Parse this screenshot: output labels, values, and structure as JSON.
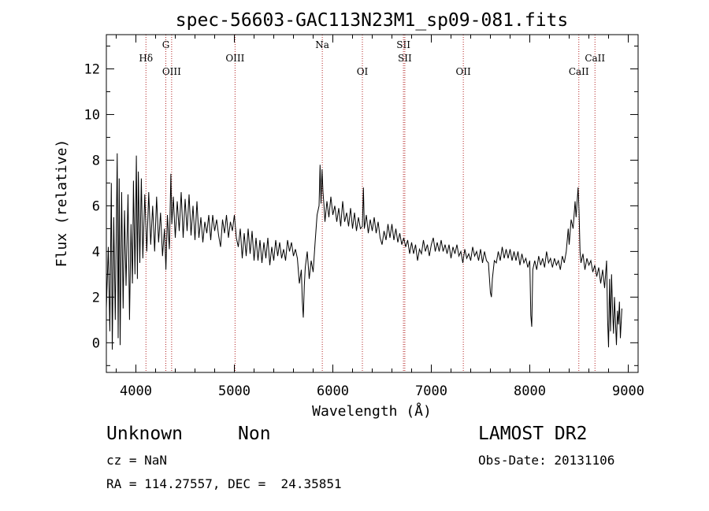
{
  "chart_data": {
    "type": "line",
    "title": "spec-56603-GAC113N23M1_sp09-081.fits",
    "xlabel": "Wavelength (Å)",
    "ylabel": "Flux (relative)",
    "xlim": [
      3700,
      9100
    ],
    "ylim": [
      -1.3,
      13.5
    ],
    "xticks": [
      "4000",
      "5000",
      "6000",
      "7000",
      "8000",
      "9000"
    ],
    "yticks": [
      "0",
      "2",
      "4",
      "6",
      "8",
      "10",
      "12"
    ],
    "line_color": "#000000",
    "marker_color": "#b22222",
    "lines": [
      {
        "name": "Hδ",
        "x": 4102,
        "row": 1
      },
      {
        "name": "G",
        "x": 4304,
        "row": 0
      },
      {
        "name": "OIII",
        "x": 4363,
        "row": 2
      },
      {
        "name": "OIII",
        "x": 5007,
        "row": 1
      },
      {
        "name": "Na",
        "x": 5893,
        "row": 0
      },
      {
        "name": "OI",
        "x": 6300,
        "row": 2
      },
      {
        "name": "SII",
        "x": 6717,
        "row": 0
      },
      {
        "name": "SII",
        "x": 6731,
        "row": 1
      },
      {
        "name": "OII",
        "x": 7325,
        "row": 2
      },
      {
        "name": "CaII",
        "x": 8498,
        "row": 2
      },
      {
        "name": "CaII",
        "x": 8662,
        "row": 1
      }
    ],
    "spectrum": [
      [
        3700,
        1.5
      ],
      [
        3720,
        4.2
      ],
      [
        3735,
        0.5
      ],
      [
        3750,
        7.0
      ],
      [
        3760,
        -0.3
      ],
      [
        3775,
        5.5
      ],
      [
        3790,
        1.0
      ],
      [
        3800,
        4.5
      ],
      [
        3810,
        8.3
      ],
      [
        3820,
        0.2
      ],
      [
        3830,
        7.2
      ],
      [
        3840,
        -0.1
      ],
      [
        3855,
        6.6
      ],
      [
        3870,
        1.5
      ],
      [
        3885,
        5.8
      ],
      [
        3900,
        2.5
      ],
      [
        3920,
        6.5
      ],
      [
        3935,
        1.0
      ],
      [
        3950,
        5.2
      ],
      [
        3965,
        2.6
      ],
      [
        3975,
        7.1
      ],
      [
        3990,
        3.0
      ],
      [
        4005,
        8.2
      ],
      [
        4015,
        2.8
      ],
      [
        4025,
        7.5
      ],
      [
        4040,
        3.5
      ],
      [
        4055,
        7.2
      ],
      [
        4070,
        3.7
      ],
      [
        4090,
        6.5
      ],
      [
        4110,
        4.0
      ],
      [
        4130,
        6.6
      ],
      [
        4150,
        4.3
      ],
      [
        4170,
        6.0
      ],
      [
        4190,
        4.0
      ],
      [
        4210,
        6.4
      ],
      [
        4230,
        4.4
      ],
      [
        4250,
        5.7
      ],
      [
        4270,
        3.8
      ],
      [
        4290,
        5.0
      ],
      [
        4305,
        3.2
      ],
      [
        4320,
        5.6
      ],
      [
        4340,
        4.1
      ],
      [
        4355,
        7.4
      ],
      [
        4365,
        5.2
      ],
      [
        4380,
        6.4
      ],
      [
        4400,
        4.6
      ],
      [
        4420,
        6.2
      ],
      [
        4440,
        4.9
      ],
      [
        4460,
        6.6
      ],
      [
        4480,
        4.6
      ],
      [
        4500,
        6.3
      ],
      [
        4520,
        4.9
      ],
      [
        4540,
        6.5
      ],
      [
        4560,
        4.7
      ],
      [
        4580,
        6.0
      ],
      [
        4600,
        4.5
      ],
      [
        4620,
        6.2
      ],
      [
        4640,
        4.6
      ],
      [
        4660,
        5.5
      ],
      [
        4680,
        4.4
      ],
      [
        4700,
        5.3
      ],
      [
        4720,
        4.8
      ],
      [
        4740,
        5.6
      ],
      [
        4760,
        4.5
      ],
      [
        4780,
        5.6
      ],
      [
        4800,
        4.9
      ],
      [
        4820,
        5.4
      ],
      [
        4840,
        4.7
      ],
      [
        4860,
        4.2
      ],
      [
        4880,
        5.4
      ],
      [
        4900,
        4.8
      ],
      [
        4920,
        5.6
      ],
      [
        4940,
        4.6
      ],
      [
        4960,
        5.3
      ],
      [
        4980,
        4.9
      ],
      [
        5000,
        5.6
      ],
      [
        5020,
        4.6
      ],
      [
        5040,
        4.2
      ],
      [
        5060,
        5.0
      ],
      [
        5080,
        3.7
      ],
      [
        5100,
        4.8
      ],
      [
        5120,
        3.8
      ],
      [
        5140,
        5.0
      ],
      [
        5160,
        3.9
      ],
      [
        5180,
        4.9
      ],
      [
        5200,
        3.6
      ],
      [
        5220,
        4.6
      ],
      [
        5240,
        3.6
      ],
      [
        5260,
        4.5
      ],
      [
        5280,
        3.5
      ],
      [
        5300,
        4.4
      ],
      [
        5320,
        3.7
      ],
      [
        5340,
        4.6
      ],
      [
        5360,
        3.4
      ],
      [
        5380,
        4.2
      ],
      [
        5400,
        3.6
      ],
      [
        5420,
        4.5
      ],
      [
        5440,
        3.8
      ],
      [
        5460,
        4.4
      ],
      [
        5480,
        3.7
      ],
      [
        5500,
        4.1
      ],
      [
        5520,
        3.6
      ],
      [
        5540,
        4.5
      ],
      [
        5560,
        4.0
      ],
      [
        5580,
        4.4
      ],
      [
        5600,
        3.8
      ],
      [
        5620,
        4.1
      ],
      [
        5640,
        3.7
      ],
      [
        5660,
        2.6
      ],
      [
        5680,
        3.2
      ],
      [
        5690,
        1.8
      ],
      [
        5700,
        1.1
      ],
      [
        5710,
        2.5
      ],
      [
        5720,
        3.3
      ],
      [
        5740,
        4.0
      ],
      [
        5760,
        2.8
      ],
      [
        5780,
        3.6
      ],
      [
        5800,
        3.1
      ],
      [
        5820,
        4.4
      ],
      [
        5840,
        5.6
      ],
      [
        5860,
        6.0
      ],
      [
        5870,
        7.8
      ],
      [
        5880,
        6.1
      ],
      [
        5890,
        7.6
      ],
      [
        5900,
        6.6
      ],
      [
        5910,
        6.0
      ],
      [
        5920,
        5.3
      ],
      [
        5940,
        6.2
      ],
      [
        5960,
        5.5
      ],
      [
        5980,
        6.4
      ],
      [
        6000,
        5.6
      ],
      [
        6020,
        6.0
      ],
      [
        6040,
        5.3
      ],
      [
        6060,
        5.9
      ],
      [
        6080,
        5.1
      ],
      [
        6100,
        6.2
      ],
      [
        6120,
        5.3
      ],
      [
        6140,
        5.7
      ],
      [
        6160,
        5.1
      ],
      [
        6180,
        5.9
      ],
      [
        6200,
        5.0
      ],
      [
        6220,
        5.7
      ],
      [
        6240,
        4.9
      ],
      [
        6260,
        5.5
      ],
      [
        6280,
        5.0
      ],
      [
        6300,
        5.1
      ],
      [
        6310,
        6.8
      ],
      [
        6320,
        5.0
      ],
      [
        6340,
        5.6
      ],
      [
        6360,
        4.8
      ],
      [
        6380,
        5.4
      ],
      [
        6400,
        4.9
      ],
      [
        6420,
        5.5
      ],
      [
        6440,
        4.8
      ],
      [
        6460,
        5.3
      ],
      [
        6480,
        4.6
      ],
      [
        6500,
        4.3
      ],
      [
        6520,
        4.9
      ],
      [
        6540,
        4.5
      ],
      [
        6560,
        5.2
      ],
      [
        6580,
        4.6
      ],
      [
        6600,
        5.2
      ],
      [
        6620,
        4.5
      ],
      [
        6640,
        5.0
      ],
      [
        6660,
        4.4
      ],
      [
        6680,
        4.8
      ],
      [
        6700,
        4.3
      ],
      [
        6720,
        4.6
      ],
      [
        6740,
        4.2
      ],
      [
        6760,
        4.5
      ],
      [
        6780,
        3.9
      ],
      [
        6800,
        4.4
      ],
      [
        6820,
        3.9
      ],
      [
        6840,
        4.3
      ],
      [
        6860,
        3.6
      ],
      [
        6880,
        4.1
      ],
      [
        6900,
        3.9
      ],
      [
        6920,
        4.5
      ],
      [
        6940,
        4.0
      ],
      [
        6960,
        4.3
      ],
      [
        6980,
        3.8
      ],
      [
        7000,
        4.3
      ],
      [
        7020,
        4.6
      ],
      [
        7040,
        4.0
      ],
      [
        7060,
        4.4
      ],
      [
        7080,
        4.0
      ],
      [
        7100,
        4.5
      ],
      [
        7120,
        4.0
      ],
      [
        7140,
        4.3
      ],
      [
        7160,
        3.9
      ],
      [
        7180,
        4.3
      ],
      [
        7200,
        3.7
      ],
      [
        7220,
        4.2
      ],
      [
        7240,
        3.9
      ],
      [
        7260,
        4.3
      ],
      [
        7280,
        3.8
      ],
      [
        7300,
        4.0
      ],
      [
        7320,
        3.5
      ],
      [
        7340,
        4.1
      ],
      [
        7360,
        3.7
      ],
      [
        7380,
        3.9
      ],
      [
        7400,
        3.6
      ],
      [
        7420,
        4.2
      ],
      [
        7440,
        3.8
      ],
      [
        7460,
        4.0
      ],
      [
        7480,
        3.6
      ],
      [
        7500,
        4.1
      ],
      [
        7520,
        3.5
      ],
      [
        7540,
        4.0
      ],
      [
        7560,
        3.6
      ],
      [
        7580,
        3.5
      ],
      [
        7600,
        2.2
      ],
      [
        7610,
        2.0
      ],
      [
        7620,
        2.8
      ],
      [
        7640,
        3.6
      ],
      [
        7660,
        3.5
      ],
      [
        7680,
        4.0
      ],
      [
        7700,
        3.6
      ],
      [
        7720,
        4.2
      ],
      [
        7740,
        3.7
      ],
      [
        7760,
        4.1
      ],
      [
        7780,
        3.7
      ],
      [
        7800,
        4.1
      ],
      [
        7820,
        3.6
      ],
      [
        7840,
        4.0
      ],
      [
        7860,
        3.6
      ],
      [
        7880,
        4.0
      ],
      [
        7900,
        3.4
      ],
      [
        7920,
        3.9
      ],
      [
        7940,
        3.5
      ],
      [
        7960,
        3.7
      ],
      [
        7980,
        3.3
      ],
      [
        8000,
        3.6
      ],
      [
        8010,
        1.2
      ],
      [
        8020,
        0.7
      ],
      [
        8030,
        3.2
      ],
      [
        8050,
        3.6
      ],
      [
        8070,
        3.2
      ],
      [
        8090,
        3.8
      ],
      [
        8110,
        3.4
      ],
      [
        8130,
        3.7
      ],
      [
        8150,
        3.3
      ],
      [
        8170,
        4.0
      ],
      [
        8190,
        3.5
      ],
      [
        8210,
        3.7
      ],
      [
        8230,
        3.3
      ],
      [
        8250,
        3.7
      ],
      [
        8270,
        3.4
      ],
      [
        8290,
        3.6
      ],
      [
        8310,
        3.2
      ],
      [
        8330,
        3.8
      ],
      [
        8350,
        3.5
      ],
      [
        8370,
        4.0
      ],
      [
        8390,
        5.0
      ],
      [
        8400,
        4.3
      ],
      [
        8420,
        5.4
      ],
      [
        8440,
        5.0
      ],
      [
        8460,
        6.2
      ],
      [
        8470,
        5.5
      ],
      [
        8490,
        6.8
      ],
      [
        8500,
        5.8
      ],
      [
        8510,
        4.0
      ],
      [
        8520,
        3.5
      ],
      [
        8540,
        3.9
      ],
      [
        8560,
        3.2
      ],
      [
        8580,
        3.7
      ],
      [
        8600,
        3.4
      ],
      [
        8620,
        3.6
      ],
      [
        8640,
        3.1
      ],
      [
        8660,
        3.4
      ],
      [
        8680,
        2.9
      ],
      [
        8700,
        3.3
      ],
      [
        8720,
        2.6
      ],
      [
        8740,
        3.2
      ],
      [
        8760,
        2.4
      ],
      [
        8780,
        3.6
      ],
      [
        8790,
        1.0
      ],
      [
        8800,
        -0.2
      ],
      [
        8810,
        2.8
      ],
      [
        8820,
        0.5
      ],
      [
        8830,
        3.0
      ],
      [
        8840,
        1.5
      ],
      [
        8850,
        0.4
      ],
      [
        8860,
        2.0
      ],
      [
        8880,
        -0.1
      ],
      [
        8890,
        1.4
      ],
      [
        8900,
        0.8
      ],
      [
        8910,
        1.8
      ],
      [
        8920,
        0.2
      ],
      [
        8935,
        1.5
      ]
    ]
  },
  "info": {
    "object_class": "Unknown",
    "subclass": "Non",
    "survey": "LAMOST DR2",
    "redshift": "cz = NaN",
    "obs_date": "Obs-Date: 20131106",
    "coords": "RA = 114.27557, DEC =  24.35851"
  }
}
